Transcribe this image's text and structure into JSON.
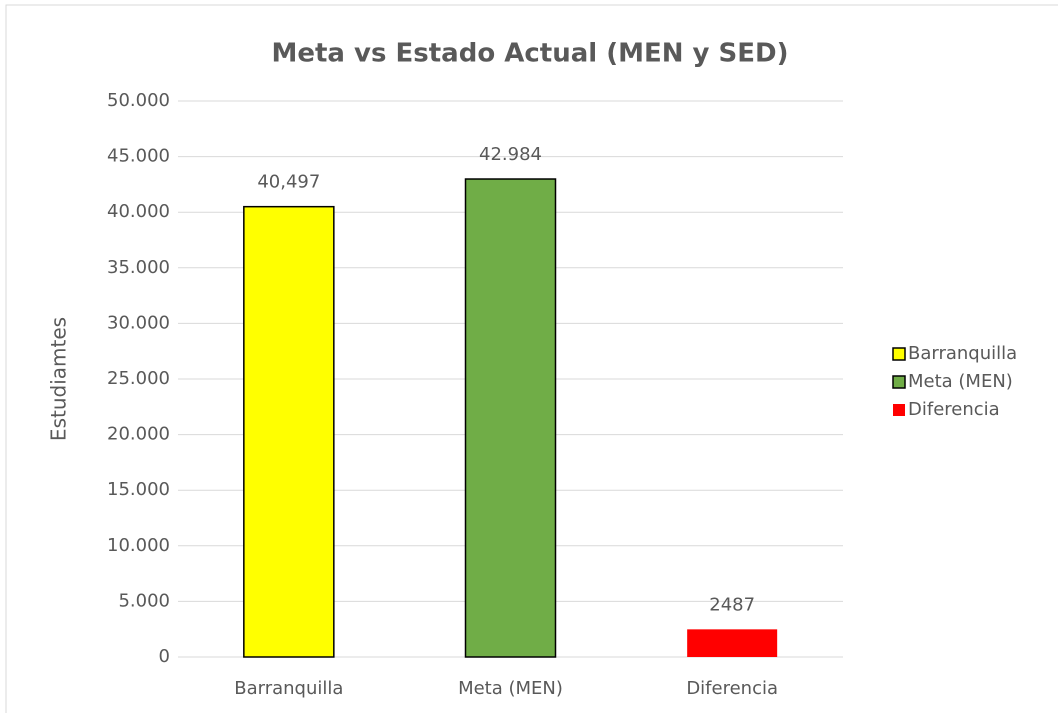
{
  "chart_data": {
    "type": "bar",
    "title": "Meta vs Estado Actual (MEN y SED)",
    "y_label": "Estudiamtes",
    "categories": [
      "Barranquilla",
      "Meta (MEN)",
      "Diferencia"
    ],
    "series": [
      {
        "name": "Barranquilla",
        "color": "#ffff00",
        "edgecolor": "#000000",
        "values": [
          40497,
          null,
          null
        ],
        "value_labels": [
          "40,497",
          null,
          null
        ]
      },
      {
        "name": "Meta (MEN)",
        "color": "#70ad47",
        "edgecolor": "#000000",
        "values": [
          null,
          42984,
          null
        ],
        "value_labels": [
          null,
          "42.984",
          null
        ]
      },
      {
        "name": "Diferencia",
        "color": "#ff0000",
        "values": [
          null,
          null,
          2487
        ],
        "value_labels": [
          null,
          null,
          "2487"
        ]
      }
    ],
    "ylim": [
      0,
      50000
    ],
    "yticks": [
      0,
      {
        "value": 5000,
        "label": "5.000"
      },
      {
        "value": 10000,
        "label": "10.000"
      },
      {
        "value": 15000,
        "label": "15.000"
      },
      {
        "value": 20000,
        "label": "20.000"
      },
      {
        "value": 25000,
        "label": "25.000"
      },
      {
        "value": 30000,
        "label": "30.000"
      },
      {
        "value": 35000,
        "label": "35.000"
      },
      {
        "value": 40000,
        "label": "40.000"
      },
      {
        "value": 45000,
        "label": "45.000"
      },
      {
        "value": 50000,
        "label": "50.000"
      }
    ],
    "grid": true,
    "legend": "right"
  }
}
